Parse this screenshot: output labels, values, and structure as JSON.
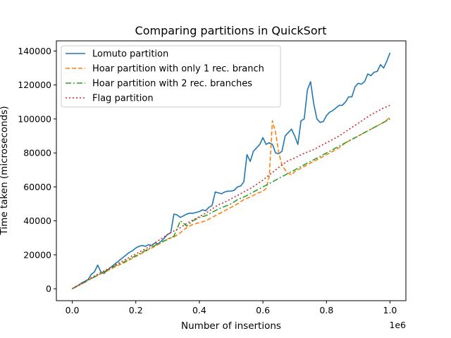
{
  "chart_data": {
    "type": "line",
    "title": "Comparing partitions in QuickSort",
    "xlabel": "Number of insertions",
    "ylabel": "Time taken (microseconds)",
    "x_offset_text": "1e6",
    "xlim": [
      -0.05,
      1.05
    ],
    "ylim": [
      -7000,
      146000
    ],
    "x_ticks": [
      0.0,
      0.2,
      0.4,
      0.6,
      0.8,
      1.0
    ],
    "x_tick_labels": [
      "0.0",
      "0.2",
      "0.4",
      "0.6",
      "0.8",
      "1.0"
    ],
    "y_ticks": [
      0,
      20000,
      40000,
      60000,
      80000,
      100000,
      120000,
      140000
    ],
    "y_tick_labels": [
      "0",
      "20000",
      "40000",
      "60000",
      "80000",
      "100000",
      "120000",
      "140000"
    ],
    "grid": false,
    "legend_position": "top-left",
    "series": [
      {
        "name": "Lomuto partition",
        "color": "#1f77b4",
        "dash": "solid",
        "points": [
          [
            0.0,
            0
          ],
          [
            0.01,
            1200
          ],
          [
            0.02,
            2200
          ],
          [
            0.03,
            3500
          ],
          [
            0.04,
            4500
          ],
          [
            0.05,
            5500
          ],
          [
            0.06,
            8500
          ],
          [
            0.07,
            10000
          ],
          [
            0.08,
            14000
          ],
          [
            0.09,
            10000
          ],
          [
            0.1,
            9000
          ],
          [
            0.11,
            11000
          ],
          [
            0.12,
            12500
          ],
          [
            0.13,
            14000
          ],
          [
            0.14,
            15500
          ],
          [
            0.15,
            17000
          ],
          [
            0.16,
            18500
          ],
          [
            0.17,
            20000
          ],
          [
            0.18,
            21500
          ],
          [
            0.19,
            22500
          ],
          [
            0.2,
            24000
          ],
          [
            0.21,
            25000
          ],
          [
            0.22,
            25500
          ],
          [
            0.23,
            25000
          ],
          [
            0.24,
            26000
          ],
          [
            0.25,
            25500
          ],
          [
            0.26,
            27000
          ],
          [
            0.27,
            26500
          ],
          [
            0.28,
            28000
          ],
          [
            0.29,
            30000
          ],
          [
            0.3,
            32000
          ],
          [
            0.31,
            33000
          ],
          [
            0.32,
            44000
          ],
          [
            0.33,
            43500
          ],
          [
            0.34,
            42000
          ],
          [
            0.35,
            43000
          ],
          [
            0.36,
            44000
          ],
          [
            0.37,
            44500
          ],
          [
            0.38,
            44500
          ],
          [
            0.39,
            45000
          ],
          [
            0.4,
            45500
          ],
          [
            0.41,
            46500
          ],
          [
            0.42,
            46000
          ],
          [
            0.43,
            48000
          ],
          [
            0.44,
            49000
          ],
          [
            0.45,
            57000
          ],
          [
            0.46,
            56500
          ],
          [
            0.47,
            56000
          ],
          [
            0.48,
            57000
          ],
          [
            0.49,
            57500
          ],
          [
            0.5,
            57500
          ],
          [
            0.51,
            58000
          ],
          [
            0.52,
            60000
          ],
          [
            0.53,
            60500
          ],
          [
            0.54,
            63000
          ],
          [
            0.55,
            79000
          ],
          [
            0.56,
            75000
          ],
          [
            0.57,
            81000
          ],
          [
            0.58,
            83000
          ],
          [
            0.59,
            85000
          ],
          [
            0.6,
            89000
          ],
          [
            0.61,
            85000
          ],
          [
            0.62,
            86000
          ],
          [
            0.63,
            85000
          ],
          [
            0.64,
            80000
          ],
          [
            0.65,
            79500
          ],
          [
            0.66,
            81000
          ],
          [
            0.67,
            90000
          ],
          [
            0.68,
            92000
          ],
          [
            0.69,
            94000
          ],
          [
            0.7,
            90000
          ],
          [
            0.71,
            85000
          ],
          [
            0.72,
            99000
          ],
          [
            0.73,
            100000
          ],
          [
            0.74,
            117000
          ],
          [
            0.75,
            122000
          ],
          [
            0.76,
            109000
          ],
          [
            0.77,
            100000
          ],
          [
            0.78,
            98000
          ],
          [
            0.79,
            98500
          ],
          [
            0.8,
            102000
          ],
          [
            0.81,
            104000
          ],
          [
            0.82,
            105000
          ],
          [
            0.83,
            106500
          ],
          [
            0.84,
            108000
          ],
          [
            0.85,
            108000
          ],
          [
            0.86,
            110000
          ],
          [
            0.87,
            113000
          ],
          [
            0.88,
            113000
          ],
          [
            0.89,
            119000
          ],
          [
            0.9,
            121000
          ],
          [
            0.91,
            120500
          ],
          [
            0.92,
            122000
          ],
          [
            0.93,
            126500
          ],
          [
            0.94,
            125500
          ],
          [
            0.95,
            127500
          ],
          [
            0.96,
            128000
          ],
          [
            0.97,
            132000
          ],
          [
            0.98,
            130000
          ],
          [
            0.99,
            134000
          ],
          [
            1.0,
            139000
          ]
        ]
      },
      {
        "name": "Hoar partition with only 1 rec. branch",
        "color": "#ff7f0e",
        "dash": "dashed",
        "points": [
          [
            0.0,
            0
          ],
          [
            0.02,
            2000
          ],
          [
            0.04,
            4000
          ],
          [
            0.06,
            6000
          ],
          [
            0.08,
            8000
          ],
          [
            0.1,
            9500
          ],
          [
            0.12,
            11500
          ],
          [
            0.14,
            13500
          ],
          [
            0.16,
            15000
          ],
          [
            0.18,
            17000
          ],
          [
            0.2,
            19000
          ],
          [
            0.22,
            21000
          ],
          [
            0.24,
            23000
          ],
          [
            0.26,
            25000
          ],
          [
            0.28,
            27000
          ],
          [
            0.3,
            29500
          ],
          [
            0.32,
            30500
          ],
          [
            0.34,
            33000
          ],
          [
            0.36,
            36000
          ],
          [
            0.38,
            38000
          ],
          [
            0.4,
            39000
          ],
          [
            0.42,
            40000
          ],
          [
            0.44,
            42000
          ],
          [
            0.46,
            44000
          ],
          [
            0.48,
            46000
          ],
          [
            0.5,
            48000
          ],
          [
            0.52,
            50000
          ],
          [
            0.54,
            52500
          ],
          [
            0.56,
            54000
          ],
          [
            0.58,
            56000
          ],
          [
            0.6,
            57500
          ],
          [
            0.61,
            59000
          ],
          [
            0.62,
            66000
          ],
          [
            0.63,
            99000
          ],
          [
            0.64,
            92000
          ],
          [
            0.65,
            80000
          ],
          [
            0.66,
            73000
          ],
          [
            0.67,
            70000
          ],
          [
            0.68,
            68000
          ],
          [
            0.69,
            67000
          ],
          [
            0.7,
            69000
          ],
          [
            0.72,
            71000
          ],
          [
            0.74,
            73000
          ],
          [
            0.76,
            75000
          ],
          [
            0.78,
            77000
          ],
          [
            0.8,
            79000
          ],
          [
            0.82,
            81000
          ],
          [
            0.84,
            83000
          ],
          [
            0.86,
            86000
          ],
          [
            0.88,
            88000
          ],
          [
            0.9,
            90000
          ],
          [
            0.92,
            92000
          ],
          [
            0.94,
            94000
          ],
          [
            0.96,
            96000
          ],
          [
            0.98,
            98000
          ],
          [
            1.0,
            101000
          ]
        ]
      },
      {
        "name": "Hoar partition with 2 rec. branches",
        "color": "#2ca02c",
        "dash": "dashdot",
        "points": [
          [
            0.0,
            0
          ],
          [
            0.02,
            2000
          ],
          [
            0.04,
            4000
          ],
          [
            0.06,
            6000
          ],
          [
            0.08,
            8000
          ],
          [
            0.1,
            10000
          ],
          [
            0.12,
            12000
          ],
          [
            0.14,
            14000
          ],
          [
            0.16,
            15500
          ],
          [
            0.18,
            17500
          ],
          [
            0.2,
            19500
          ],
          [
            0.22,
            21500
          ],
          [
            0.24,
            23500
          ],
          [
            0.26,
            25500
          ],
          [
            0.28,
            27500
          ],
          [
            0.3,
            29000
          ],
          [
            0.32,
            31000
          ],
          [
            0.34,
            40000
          ],
          [
            0.36,
            37000
          ],
          [
            0.38,
            40000
          ],
          [
            0.4,
            42000
          ],
          [
            0.42,
            43000
          ],
          [
            0.44,
            45000
          ],
          [
            0.46,
            47000
          ],
          [
            0.48,
            48500
          ],
          [
            0.5,
            50000
          ],
          [
            0.52,
            52500
          ],
          [
            0.54,
            54000
          ],
          [
            0.56,
            56000
          ],
          [
            0.58,
            58000
          ],
          [
            0.6,
            60000
          ],
          [
            0.62,
            62000
          ],
          [
            0.64,
            64000
          ],
          [
            0.66,
            66000
          ],
          [
            0.68,
            68000
          ],
          [
            0.7,
            70000
          ],
          [
            0.72,
            72000
          ],
          [
            0.74,
            74000
          ],
          [
            0.76,
            76000
          ],
          [
            0.78,
            78000
          ],
          [
            0.8,
            80000
          ],
          [
            0.82,
            82000
          ],
          [
            0.84,
            84000
          ],
          [
            0.86,
            86000
          ],
          [
            0.88,
            88000
          ],
          [
            0.9,
            90000
          ],
          [
            0.92,
            92000
          ],
          [
            0.94,
            94000
          ],
          [
            0.96,
            96000
          ],
          [
            0.98,
            98000
          ],
          [
            1.0,
            100000
          ]
        ]
      },
      {
        "name": "Flag partition",
        "color": "#d62728",
        "dash": "dotted",
        "points": [
          [
            0.0,
            0
          ],
          [
            0.02,
            2000
          ],
          [
            0.04,
            4000
          ],
          [
            0.06,
            6500
          ],
          [
            0.08,
            8500
          ],
          [
            0.1,
            10500
          ],
          [
            0.12,
            12500
          ],
          [
            0.14,
            14500
          ],
          [
            0.16,
            16500
          ],
          [
            0.18,
            18500
          ],
          [
            0.2,
            20500
          ],
          [
            0.22,
            22500
          ],
          [
            0.24,
            24500
          ],
          [
            0.26,
            27000
          ],
          [
            0.28,
            29500
          ],
          [
            0.3,
            32000
          ],
          [
            0.32,
            34000
          ],
          [
            0.34,
            36000
          ],
          [
            0.36,
            38500
          ],
          [
            0.38,
            40500
          ],
          [
            0.4,
            42500
          ],
          [
            0.42,
            44500
          ],
          [
            0.44,
            47000
          ],
          [
            0.46,
            49500
          ],
          [
            0.48,
            51000
          ],
          [
            0.5,
            53000
          ],
          [
            0.52,
            55000
          ],
          [
            0.54,
            57000
          ],
          [
            0.56,
            59000
          ],
          [
            0.58,
            61500
          ],
          [
            0.6,
            64000
          ],
          [
            0.62,
            67000
          ],
          [
            0.64,
            70000
          ],
          [
            0.66,
            73000
          ],
          [
            0.68,
            75500
          ],
          [
            0.7,
            77000
          ],
          [
            0.72,
            79000
          ],
          [
            0.74,
            80500
          ],
          [
            0.76,
            82000
          ],
          [
            0.78,
            84000
          ],
          [
            0.8,
            86000
          ],
          [
            0.82,
            88000
          ],
          [
            0.84,
            90000
          ],
          [
            0.86,
            92500
          ],
          [
            0.88,
            95000
          ],
          [
            0.9,
            97500
          ],
          [
            0.92,
            100000
          ],
          [
            0.94,
            102500
          ],
          [
            0.96,
            104500
          ],
          [
            0.98,
            106500
          ],
          [
            1.0,
            108000
          ]
        ]
      }
    ]
  }
}
